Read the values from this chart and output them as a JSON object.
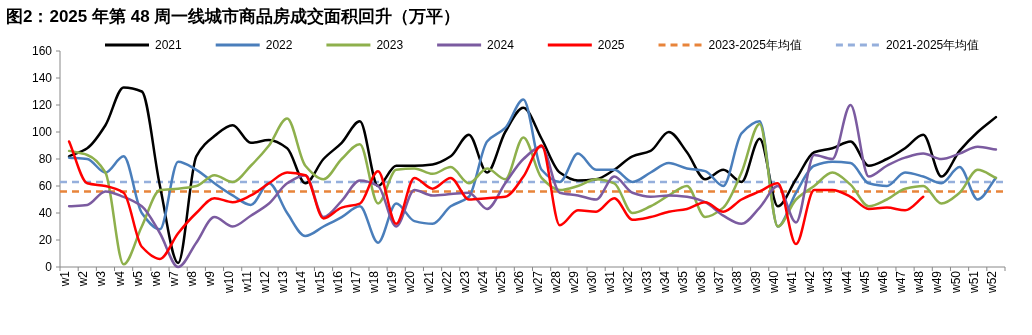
{
  "chart_data": {
    "type": "line",
    "title": "图2：2025 年第 48 周一线城市商品房成交面积回升（万平）",
    "categories": [
      "w1",
      "w2",
      "w3",
      "w4",
      "w5",
      "w6",
      "w7",
      "w8",
      "w9",
      "w10",
      "w11",
      "w12",
      "w13",
      "w14",
      "w15",
      "w16",
      "w17",
      "w18",
      "w19",
      "w20",
      "w21",
      "w22",
      "w23",
      "w24",
      "w25",
      "w26",
      "w27",
      "w28",
      "w29",
      "w30",
      "w31",
      "w32",
      "w33",
      "w34",
      "w35",
      "w36",
      "w37",
      "w38",
      "w39",
      "w40",
      "w41",
      "w42",
      "w43",
      "w44",
      "w45",
      "w46",
      "w47",
      "w48",
      "w49",
      "w50",
      "w51",
      "w52"
    ],
    "series": [
      {
        "name": "2021",
        "color": "#000000",
        "values": [
          82,
          88,
          105,
          133,
          130,
          60,
          3,
          82,
          97,
          105,
          92,
          94,
          88,
          62,
          80,
          92,
          108,
          60,
          75,
          75,
          76,
          82,
          98,
          70,
          100,
          118,
          95,
          70,
          64,
          65,
          72,
          82,
          86,
          100,
          85,
          65,
          72,
          63,
          95,
          45,
          65,
          85,
          88,
          93,
          75,
          80,
          88,
          98,
          67,
          86,
          100,
          111
        ]
      },
      {
        "name": "2022",
        "color": "#4a7ebb",
        "values": [
          81,
          80,
          70,
          82,
          40,
          28,
          78,
          72,
          62,
          53,
          46,
          62,
          40,
          23,
          30,
          37,
          45,
          18,
          47,
          34,
          32,
          45,
          52,
          93,
          103,
          124,
          72,
          63,
          84,
          72,
          72,
          63,
          70,
          77,
          73,
          71,
          60,
          99,
          108,
          30,
          55,
          75,
          78,
          77,
          62,
          60,
          70,
          67,
          62,
          74,
          50,
          66
        ]
      },
      {
        "name": "2023",
        "color": "#8eb04c",
        "values": [
          86,
          83,
          70,
          2,
          30,
          57,
          58,
          60,
          68,
          63,
          75,
          90,
          110,
          75,
          65,
          80,
          91,
          47,
          72,
          73,
          69,
          74,
          62,
          73,
          65,
          96,
          66,
          57,
          60,
          65,
          62,
          40,
          45,
          53,
          60,
          37,
          44,
          70,
          106,
          30,
          50,
          60,
          70,
          61,
          45,
          50,
          58,
          60,
          47,
          55,
          72,
          66
        ]
      },
      {
        "name": "2024",
        "color": "#7b5ba0",
        "values": [
          45,
          46,
          56,
          52,
          45,
          25,
          0,
          18,
          37,
          30,
          38,
          47,
          62,
          68,
          37,
          49,
          64,
          60,
          30,
          57,
          53,
          54,
          55,
          43,
          62,
          80,
          89,
          55,
          53,
          50,
          67,
          55,
          52,
          53,
          52,
          48,
          38,
          32,
          44,
          60,
          33,
          83,
          80,
          120,
          67,
          75,
          81,
          84,
          80,
          84,
          89,
          87
        ]
      },
      {
        "name": "2025",
        "color": "#ff0000",
        "values": [
          93,
          62,
          60,
          55,
          15,
          6,
          25,
          40,
          51,
          48,
          53,
          62,
          70,
          68,
          36,
          44,
          47,
          71,
          32,
          66,
          58,
          66,
          50,
          51,
          52,
          67,
          90,
          31,
          42,
          41,
          51,
          35,
          37,
          41,
          43,
          48,
          41,
          50,
          56,
          62,
          17,
          57,
          57,
          52,
          43,
          44,
          42,
          52,
          null,
          null,
          null,
          null
        ]
      }
    ],
    "ref_lines": [
      {
        "axis": "y",
        "value": 56,
        "label": "2023-2025年均值",
        "color": "#e8843a",
        "line_style": "dashed"
      },
      {
        "axis": "y",
        "value": 63,
        "label": "2021-2025年均值",
        "color": "#95afdc",
        "line_style": "dashed"
      }
    ],
    "ylim": [
      0,
      160
    ],
    "yticks": [
      0,
      20,
      40,
      60,
      80,
      100,
      120,
      140,
      160
    ],
    "grid": false,
    "legend": "top",
    "marker": "none",
    "line_style": "solid"
  }
}
